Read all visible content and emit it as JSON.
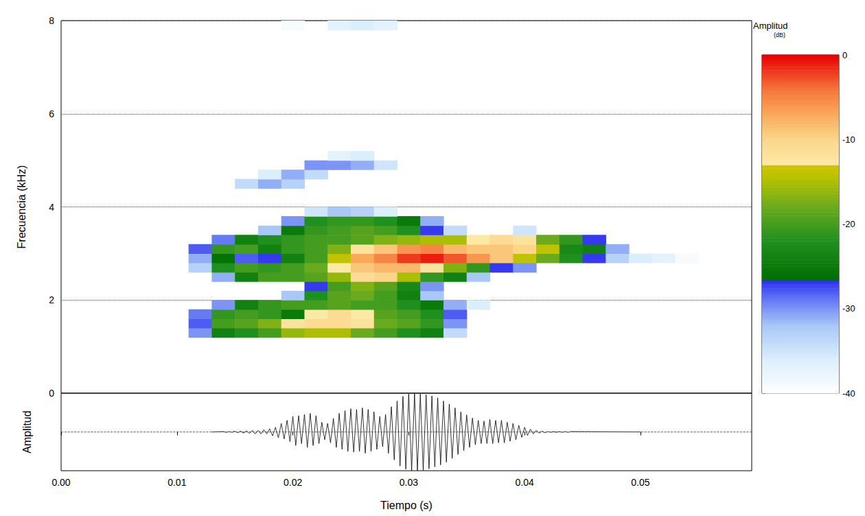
{
  "chart_data": [
    {
      "type": "heatmap",
      "y_label": "Frecuencia (kHz)",
      "xlim": [
        0,
        0.0596
      ],
      "ylim": [
        0,
        8
      ],
      "yticks": [
        0,
        2,
        4,
        6,
        8
      ],
      "grid": true,
      "tick_labels": "y",
      "times": [
        0.012,
        0.014,
        0.016,
        0.018,
        0.02,
        0.022,
        0.024,
        0.026,
        0.028,
        0.03,
        0.032,
        0.034,
        0.036,
        0.038,
        0.04,
        0.042,
        0.044,
        0.046,
        0.048,
        0.05,
        0.052,
        0.054
      ],
      "frequencies": [
        1.3,
        1.5,
        1.7,
        1.9,
        2.1,
        2.3,
        2.5,
        2.7,
        2.9,
        3.1,
        3.3,
        3.5,
        3.7,
        3.9,
        4.5,
        4.7,
        4.9,
        5.1,
        7.9
      ],
      "levels": [
        [
          -30,
          -24,
          -22,
          -20,
          -16,
          -15,
          -15,
          -18,
          -20,
          -22,
          -24,
          -34,
          null,
          null,
          null,
          null,
          null,
          null,
          null,
          null,
          null,
          null
        ],
        [
          -28,
          -20,
          -19,
          -17,
          -12,
          -11,
          -11,
          -12,
          -18,
          -19,
          -21,
          -30,
          null,
          null,
          null,
          null,
          null,
          null,
          null,
          null,
          null,
          null
        ],
        [
          -29,
          -21,
          -20,
          -21,
          -25,
          -13,
          -11,
          -13,
          -19,
          -20,
          -22,
          -28,
          null,
          null,
          null,
          null,
          null,
          null,
          null,
          null,
          null,
          null
        ],
        [
          null,
          -30,
          -24,
          -21,
          -20,
          -20,
          -19,
          -20,
          -20,
          -22,
          -25,
          -31,
          -36,
          null,
          null,
          null,
          null,
          null,
          null,
          null,
          null,
          null
        ],
        [
          null,
          null,
          null,
          null,
          -32,
          -22,
          -19,
          -18,
          -20,
          -24,
          -32,
          null,
          null,
          null,
          null,
          null,
          null,
          null,
          null,
          null,
          null,
          null
        ],
        [
          null,
          null,
          null,
          null,
          null,
          -27,
          -20,
          -17,
          -19,
          -23,
          -30,
          null,
          null,
          null,
          null,
          null,
          null,
          null,
          null,
          null,
          null,
          null
        ],
        [
          null,
          -31,
          -24,
          -20,
          -20,
          -19,
          -16,
          -11,
          -10,
          -15,
          -21,
          -24,
          -32,
          null,
          null,
          null,
          null,
          null,
          null,
          null,
          null,
          null
        ],
        [
          -33,
          -22,
          -20,
          -21,
          -20,
          -18,
          -13,
          -9,
          -8,
          -8,
          -12,
          -17,
          -21,
          -27,
          -30,
          null,
          null,
          null,
          null,
          null,
          null,
          null
        ],
        [
          -31,
          -26,
          -28,
          -27,
          -24,
          -20,
          -14,
          -7,
          -5,
          -2,
          -1,
          -3,
          -6,
          -9,
          -14,
          -18,
          -22,
          -27,
          -33,
          -36,
          -37,
          -39
        ],
        [
          -28,
          -21,
          -20,
          -24,
          -21,
          -20,
          -17,
          -12,
          -9,
          -6,
          -5,
          -8,
          -9,
          -9,
          -10,
          -14,
          -23,
          -24,
          -31,
          null,
          null,
          null
        ],
        [
          null,
          -29,
          -24,
          -22,
          -21,
          -20,
          -20,
          -19,
          -17,
          -16,
          -15,
          -15,
          -13,
          -11,
          -12,
          -18,
          -21,
          -27,
          null,
          null,
          null,
          null
        ],
        [
          null,
          null,
          null,
          -32,
          -25,
          -21,
          -20,
          -19,
          -20,
          -22,
          -27,
          -34,
          null,
          null,
          -35,
          null,
          null,
          null,
          null,
          null,
          null,
          null
        ],
        [
          null,
          null,
          null,
          null,
          -30,
          -22,
          -21,
          -21,
          -22,
          -25,
          -31,
          null,
          null,
          null,
          null,
          null,
          null,
          null,
          null,
          null,
          null,
          null
        ],
        [
          null,
          null,
          null,
          null,
          null,
          -35,
          -32,
          -33,
          -36,
          null,
          null,
          null,
          null,
          null,
          null,
          null,
          null,
          null,
          null,
          null,
          null,
          null
        ],
        [
          null,
          null,
          -34,
          -31,
          -33,
          null,
          null,
          null,
          null,
          null,
          null,
          null,
          null,
          null,
          null,
          null,
          null,
          null,
          null,
          null,
          null,
          null
        ],
        [
          null,
          null,
          null,
          -36,
          -31,
          -34,
          null,
          null,
          null,
          null,
          null,
          null,
          null,
          null,
          null,
          null,
          null,
          null,
          null,
          null,
          null,
          null
        ],
        [
          null,
          null,
          null,
          null,
          null,
          -30,
          -30,
          -31,
          -35,
          null,
          null,
          null,
          null,
          null,
          null,
          null,
          null,
          null,
          null,
          null,
          null,
          null
        ],
        [
          null,
          null,
          null,
          null,
          null,
          null,
          -37,
          -36,
          null,
          null,
          null,
          null,
          null,
          null,
          null,
          null,
          null,
          null,
          null,
          null,
          null,
          null
        ],
        [
          null,
          null,
          null,
          null,
          -39,
          null,
          -37,
          -36,
          -37,
          null,
          null,
          null,
          null,
          null,
          null,
          null,
          null,
          null,
          null,
          null,
          null,
          null
        ]
      ],
      "colorbar": {
        "title": "Amplitud",
        "unit": "(dB)",
        "range": [
          -40,
          0
        ],
        "ticks": [
          0,
          -10,
          -20,
          -30,
          -40
        ]
      }
    },
    {
      "type": "line",
      "x_label": "Tiempo (s)",
      "y_label": "Amplitud",
      "color": "#000000",
      "xlim": [
        0,
        0.0596
      ],
      "xticks": [
        {
          "value": 0,
          "label": "0.00"
        },
        {
          "value": 0.01,
          "label": "0.01"
        },
        {
          "value": 0.02,
          "label": "0.02"
        },
        {
          "value": 0.03,
          "label": "0.03"
        },
        {
          "value": 0.04,
          "label": "0.04"
        },
        {
          "value": 0.05,
          "label": "0.05"
        }
      ],
      "ylim": [
        -1,
        1
      ],
      "yticks": [
        0
      ],
      "grid": true,
      "tick_labels": "x",
      "x": [
        0.013,
        0.014,
        0.01425,
        0.0145,
        0.01475,
        0.015,
        0.01525,
        0.0155,
        0.01575,
        0.016,
        0.01625,
        0.0165,
        0.01675,
        0.017,
        0.01725,
        0.0175,
        0.01775,
        0.018,
        0.01825,
        0.0185,
        0.01875,
        0.019,
        0.01925,
        0.0195,
        0.01975,
        0.02,
        0.02025,
        0.0205,
        0.02075,
        0.021,
        0.02125,
        0.0215,
        0.02175,
        0.022,
        0.02225,
        0.0225,
        0.02275,
        0.023,
        0.02325,
        0.0235,
        0.02375,
        0.024,
        0.02425,
        0.0245,
        0.02475,
        0.025,
        0.02525,
        0.0255,
        0.02575,
        0.026,
        0.02625,
        0.0265,
        0.02675,
        0.027,
        0.02725,
        0.0275,
        0.02775,
        0.028,
        0.02825,
        0.0285,
        0.02875,
        0.029,
        0.02925,
        0.0295,
        0.02975,
        0.03,
        0.03025,
        0.0305,
        0.03075,
        0.031,
        0.03125,
        0.0315,
        0.03175,
        0.032,
        0.03225,
        0.0325,
        0.03275,
        0.033,
        0.03325,
        0.0335,
        0.03375,
        0.034,
        0.03425,
        0.0345,
        0.03475,
        0.035,
        0.03525,
        0.0355,
        0.03575,
        0.036,
        0.03625,
        0.0365,
        0.03675,
        0.037,
        0.03725,
        0.0375,
        0.03775,
        0.038,
        0.03825,
        0.0385,
        0.03875,
        0.039,
        0.03925,
        0.0395,
        0.03975,
        0.04,
        0.04025,
        0.0405,
        0.04075,
        0.041,
        0.04125,
        0.0415,
        0.04175,
        0.042,
        0.04225,
        0.0425,
        0.04275,
        0.043,
        0.04325,
        0.0435,
        0.04375,
        0.044,
        0.05
      ],
      "values": [
        0,
        0.01,
        -0.01,
        0.01,
        -0.01,
        0.02,
        -0.02,
        0.02,
        -0.03,
        0.03,
        -0.04,
        0.04,
        -0.05,
        0.04,
        -0.05,
        0.06,
        -0.05,
        0.08,
        -0.1,
        0.12,
        -0.15,
        0.22,
        -0.18,
        0.3,
        -0.25,
        0.4,
        -0.35,
        0.42,
        -0.3,
        0.45,
        -0.4,
        0.48,
        -0.35,
        0.42,
        -0.3,
        0.25,
        -0.2,
        0.22,
        -0.28,
        0.35,
        -0.4,
        0.48,
        -0.45,
        0.55,
        -0.5,
        0.6,
        -0.52,
        0.58,
        -0.5,
        0.62,
        -0.55,
        0.58,
        -0.5,
        0.52,
        -0.45,
        0.4,
        -0.38,
        0.45,
        -0.55,
        0.65,
        -0.72,
        0.8,
        -0.88,
        0.92,
        -0.96,
        0.98,
        -1.0,
        0.99,
        -1.0,
        0.98,
        -0.99,
        0.96,
        -0.95,
        0.93,
        -0.9,
        0.88,
        -0.85,
        0.8,
        -0.78,
        0.72,
        -0.68,
        0.62,
        -0.58,
        0.52,
        -0.48,
        0.44,
        -0.4,
        0.36,
        -0.33,
        0.3,
        -0.3,
        0.28,
        -0.3,
        0.32,
        -0.3,
        0.3,
        -0.28,
        0.3,
        -0.28,
        0.25,
        -0.24,
        0.22,
        -0.2,
        0.17,
        -0.14,
        0.12,
        -0.09,
        0.07,
        -0.05,
        0.04,
        -0.03,
        0.02,
        -0.02,
        0.01,
        -0.01,
        0.01,
        -0.01,
        0.01,
        -0.01,
        0.01,
        -0.01,
        0.01,
        0
      ]
    }
  ]
}
